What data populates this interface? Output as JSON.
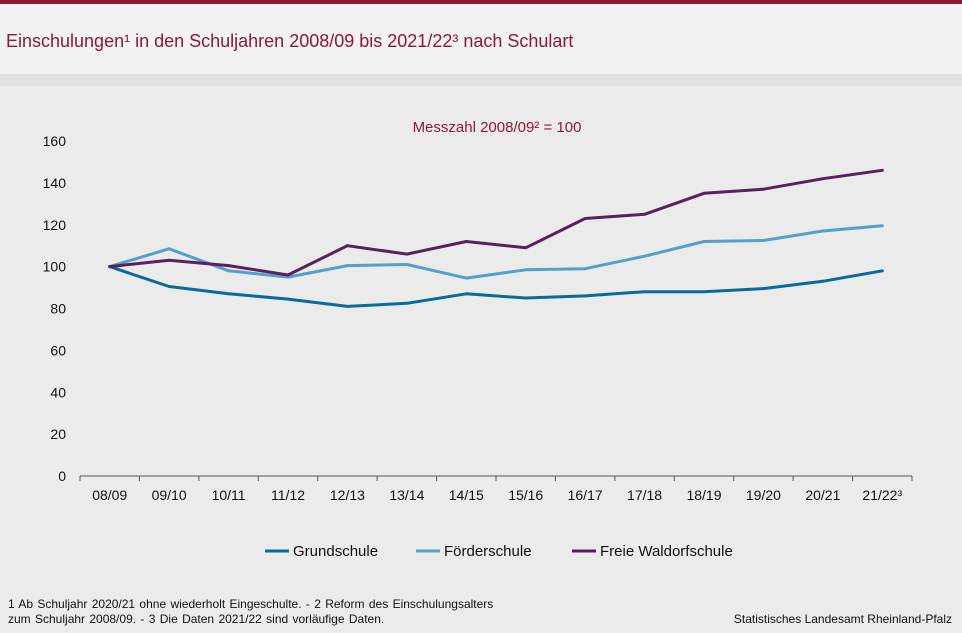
{
  "header": {
    "title": "Einschulungen¹ in den Schuljahren 2008/09 bis 2021/22³ nach Schulart"
  },
  "colors": {
    "accent": "#8a1a35",
    "grundschule": "#0a6a9a",
    "foerderschule": "#55a0c8",
    "waldorf": "#5a2060"
  },
  "chart_data": {
    "type": "line",
    "title": "Einschulungen¹ in den Schuljahren 2008/09 bis 2021/22³ nach Schulart",
    "subtitle": "Messzahl 2008/09² = 100",
    "xlabel": "",
    "ylabel": "",
    "ylim": [
      0,
      160
    ],
    "yticks": [
      "0",
      "20",
      "40",
      "60",
      "80",
      "100",
      "120",
      "140",
      "160"
    ],
    "categories": [
      "08/09",
      "09/10",
      "10/11",
      "11/12",
      "12/13",
      "13/14",
      "14/15",
      "15/16",
      "16/17",
      "17/18",
      "18/19",
      "19/20",
      "20/21",
      "21/22³"
    ],
    "series": [
      {
        "name": "Grundschule",
        "color": "#0a6a9a",
        "values": [
          100,
          90.5,
          87,
          84.5,
          81,
          82.5,
          87,
          85,
          86,
          88,
          88,
          89.5,
          93,
          98
        ]
      },
      {
        "name": "Förderschule",
        "color": "#55a0c8",
        "values": [
          100,
          108.5,
          98,
          95,
          100.5,
          101,
          94.5,
          98.5,
          99,
          105,
          112,
          112.5,
          117,
          119.5
        ]
      },
      {
        "name": "Freie Waldorfschule",
        "color": "#5a2060",
        "values": [
          100,
          103,
          100.5,
          96,
          110,
          106,
          112,
          109,
          123,
          125,
          135,
          137,
          142,
          146
        ]
      }
    ],
    "legend_position": "bottom-center",
    "grid": false
  },
  "footer": {
    "footnote_line1": "1 Ab Schuljahr 2020/21 ohne wiederholt Eingeschulte. - 2 Reform des Einschulungsalters",
    "footnote_line2": "zum Schuljahr 2008/09. - 3 Die Daten 2021/22 sind vorläufige Daten.",
    "source": "Statistisches Landesamt Rheinland-Pfalz"
  }
}
